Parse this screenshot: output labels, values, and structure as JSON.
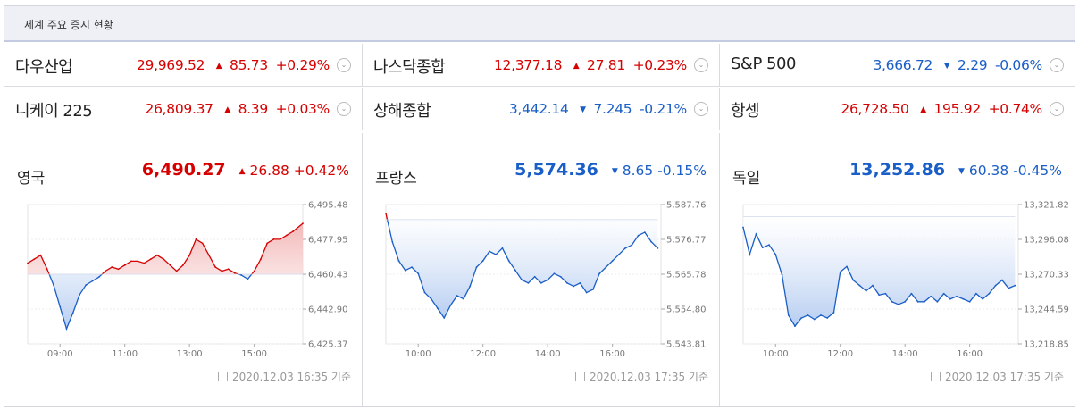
{
  "header": {
    "title": "세계 주요 증시 현황"
  },
  "indices": [
    {
      "name": "다우산업",
      "value": "29,969.52",
      "change": "85.73",
      "pct": "+0.29%",
      "dir": "up"
    },
    {
      "name": "나스닥종합",
      "value": "12,377.18",
      "change": "27.81",
      "pct": "+0.23%",
      "dir": "up"
    },
    {
      "name": "S&P 500",
      "value": "3,666.72",
      "change": "2.29",
      "pct": "-0.06%",
      "dir": "dn"
    },
    {
      "name": "니케이 225",
      "value": "26,809.37",
      "change": "8.39",
      "pct": "+0.03%",
      "dir": "up"
    },
    {
      "name": "상해종합",
      "value": "3,442.14",
      "change": "7.245",
      "pct": "-0.21%",
      "dir": "dn"
    },
    {
      "name": "항셍",
      "value": "26,728.50",
      "change": "195.92",
      "pct": "+0.74%",
      "dir": "up"
    }
  ],
  "colors": {
    "up": "#d60000",
    "down": "#1a5ec7",
    "upFill": "#f3b8b8",
    "downFill": "#b6cdf1"
  },
  "chart_data": [
    {
      "type": "area",
      "name": "영국",
      "value": "6,490.27",
      "change": "26.88",
      "pct": "+0.42%",
      "dir": "up",
      "baseline": 6460.43,
      "ylim": [
        6425.37,
        6495.48
      ],
      "yticks": [
        "6,495.48",
        "6,477.95",
        "6,460.43",
        "6,442.90",
        "6,425.37"
      ],
      "xlim": [
        8.0,
        16.5
      ],
      "xticks": [
        {
          "v": 9,
          "l": "09:00"
        },
        {
          "v": 11,
          "l": "11:00"
        },
        {
          "v": 13,
          "l": "13:00"
        },
        {
          "v": 15,
          "l": "15:00"
        }
      ],
      "x": [
        8.0,
        8.2,
        8.4,
        8.6,
        8.8,
        9.0,
        9.2,
        9.4,
        9.6,
        9.8,
        10.0,
        10.2,
        10.4,
        10.6,
        10.8,
        11.0,
        11.2,
        11.4,
        11.6,
        11.8,
        12.0,
        12.2,
        12.4,
        12.6,
        12.8,
        13.0,
        13.1,
        13.2,
        13.4,
        13.6,
        13.8,
        14.0,
        14.2,
        14.4,
        14.6,
        14.8,
        15.0,
        15.2,
        15.4,
        15.6,
        15.8,
        16.0,
        16.2,
        16.5
      ],
      "y": [
        6466,
        6468,
        6470,
        6463,
        6455,
        6444,
        6433,
        6441,
        6450,
        6455,
        6457,
        6459,
        6462,
        6464,
        6463,
        6465,
        6467,
        6467,
        6466,
        6468,
        6470,
        6468,
        6465,
        6462,
        6465,
        6470,
        6474,
        6478,
        6476,
        6470,
        6464,
        6462,
        6463,
        6461,
        6460,
        6458,
        6462,
        6468,
        6476,
        6478,
        6478,
        6480,
        6482,
        6486
      ],
      "stamp": "2020.12.03 16:35 기준"
    },
    {
      "type": "area",
      "name": "프랑스",
      "value": "5,574.36",
      "change": "8.65",
      "pct": "-0.15%",
      "dir": "dn",
      "baseline": 5583.0,
      "ylim": [
        5543.81,
        5587.76
      ],
      "yticks": [
        "5,587.76",
        "5,576.77",
        "5,565.78",
        "5,554.80",
        "5,543.81"
      ],
      "xlim": [
        9.0,
        17.5
      ],
      "xticks": [
        {
          "v": 10,
          "l": "10:00"
        },
        {
          "v": 12,
          "l": "12:00"
        },
        {
          "v": 14,
          "l": "14:00"
        },
        {
          "v": 16,
          "l": "16:00"
        }
      ],
      "x": [
        9.0,
        9.2,
        9.4,
        9.6,
        9.8,
        10.0,
        10.2,
        10.4,
        10.6,
        10.8,
        11.0,
        11.2,
        11.4,
        11.6,
        11.8,
        12.0,
        12.2,
        12.4,
        12.6,
        12.8,
        13.0,
        13.2,
        13.4,
        13.6,
        13.8,
        14.0,
        14.2,
        14.4,
        14.6,
        14.8,
        15.0,
        15.2,
        15.4,
        15.6,
        15.8,
        16.0,
        16.2,
        16.4,
        16.6,
        16.8,
        17.0,
        17.2,
        17.4
      ],
      "y": [
        5585,
        5576,
        5570,
        5567,
        5568,
        5566,
        5560,
        5558,
        5555,
        5552,
        5556,
        5559,
        5558,
        5562,
        5568,
        5570,
        5573,
        5572,
        5574,
        5570,
        5567,
        5564,
        5563,
        5565,
        5563,
        5564,
        5566,
        5565,
        5563,
        5562,
        5563,
        5560,
        5561,
        5566,
        5568,
        5570,
        5572,
        5574,
        5575,
        5578,
        5579,
        5576,
        5574
      ],
      "stamp": "2020.12.03 17:35 기준"
    },
    {
      "type": "area",
      "name": "독일",
      "value": "13,252.86",
      "change": "60.38",
      "pct": "-0.45%",
      "dir": "dn",
      "baseline": 13313.0,
      "ylim": [
        13218.85,
        13321.82
      ],
      "yticks": [
        "13,321.82",
        "13,296.08",
        "13,270.33",
        "13,244.59",
        "13,218.85"
      ],
      "xlim": [
        9.0,
        17.5
      ],
      "xticks": [
        {
          "v": 10,
          "l": "10:00"
        },
        {
          "v": 12,
          "l": "12:00"
        },
        {
          "v": 14,
          "l": "14:00"
        },
        {
          "v": 16,
          "l": "16:00"
        }
      ],
      "x": [
        9.0,
        9.2,
        9.4,
        9.6,
        9.8,
        10.0,
        10.2,
        10.4,
        10.6,
        10.8,
        11.0,
        11.2,
        11.4,
        11.6,
        11.8,
        12.0,
        12.2,
        12.4,
        12.6,
        12.8,
        13.0,
        13.2,
        13.4,
        13.6,
        13.8,
        14.0,
        14.2,
        14.4,
        14.6,
        14.8,
        15.0,
        15.2,
        15.4,
        15.6,
        15.8,
        16.0,
        16.2,
        16.4,
        16.6,
        16.8,
        17.0,
        17.2,
        17.4
      ],
      "y": [
        13305,
        13285,
        13300,
        13290,
        13292,
        13285,
        13270,
        13240,
        13232,
        13238,
        13240,
        13237,
        13240,
        13238,
        13242,
        13272,
        13276,
        13266,
        13262,
        13258,
        13262,
        13255,
        13256,
        13250,
        13248,
        13250,
        13256,
        13250,
        13250,
        13254,
        13250,
        13256,
        13252,
        13254,
        13252,
        13250,
        13256,
        13252,
        13256,
        13262,
        13266,
        13260,
        13262
      ],
      "stamp": "2020.12.03 17:35 기준"
    }
  ]
}
